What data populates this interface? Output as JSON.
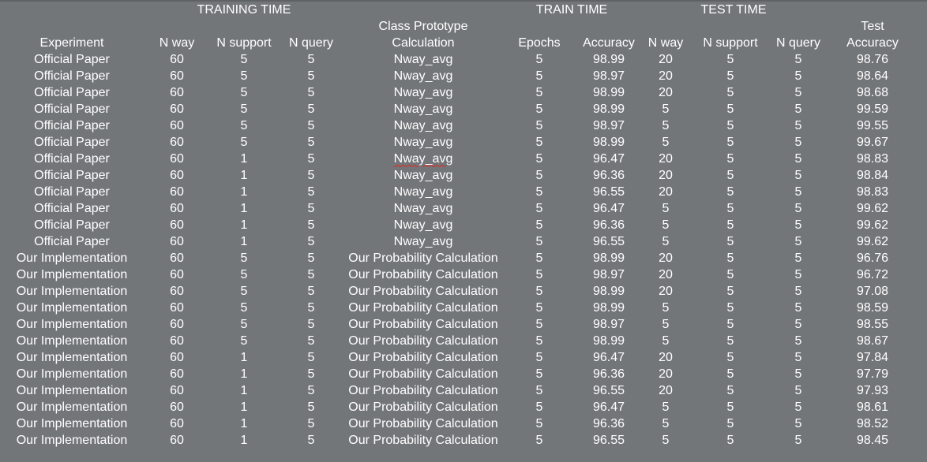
{
  "group_headers": {
    "training_time": "TRAINING TIME",
    "train_time": "TRAIN TIME",
    "test_time": "TEST TIME"
  },
  "headers": {
    "experiment": "Experiment",
    "n_way": "N way",
    "n_support": "N support",
    "n_query": "N query",
    "class_prototype_line1": "Class Prototype",
    "class_prototype_line2": "Calculation",
    "epochs": "Epochs",
    "accuracy": "Accuracy",
    "test_n_way": "N way",
    "test_n_support": "N support",
    "test_n_query": "N query",
    "test_accuracy_line1": "Test",
    "test_accuracy_line2": "Accuracy"
  },
  "rows": [
    [
      "Official Paper",
      "60",
      "5",
      "5",
      "Nway_avg",
      "5",
      "98.99",
      "20",
      "5",
      "5",
      "98.76"
    ],
    [
      "Official Paper",
      "60",
      "5",
      "5",
      "Nway_avg",
      "5",
      "98.97",
      "20",
      "5",
      "5",
      "98.64"
    ],
    [
      "Official Paper",
      "60",
      "5",
      "5",
      "Nway_avg",
      "5",
      "98.99",
      "20",
      "5",
      "5",
      "98.68"
    ],
    [
      "Official Paper",
      "60",
      "5",
      "5",
      "Nway_avg",
      "5",
      "98.99",
      "5",
      "5",
      "5",
      "99.59"
    ],
    [
      "Official Paper",
      "60",
      "5",
      "5",
      "Nway_avg",
      "5",
      "98.97",
      "5",
      "5",
      "5",
      "99.55"
    ],
    [
      "Official Paper",
      "60",
      "5",
      "5",
      "Nway_avg",
      "5",
      "98.99",
      "5",
      "5",
      "5",
      "99.67"
    ],
    [
      "Official Paper",
      "60",
      "1",
      "5",
      "Nway_avg",
      "5",
      "96.47",
      "20",
      "5",
      "5",
      "98.83"
    ],
    [
      "Official Paper",
      "60",
      "1",
      "5",
      "Nway_avg",
      "5",
      "96.36",
      "20",
      "5",
      "5",
      "98.84"
    ],
    [
      "Official Paper",
      "60",
      "1",
      "5",
      "Nway_avg",
      "5",
      "96.55",
      "20",
      "5",
      "5",
      "98.83"
    ],
    [
      "Official Paper",
      "60",
      "1",
      "5",
      "Nway_avg",
      "5",
      "96.47",
      "5",
      "5",
      "5",
      "99.62"
    ],
    [
      "Official Paper",
      "60",
      "1",
      "5",
      "Nway_avg",
      "5",
      "96.36",
      "5",
      "5",
      "5",
      "99.62"
    ],
    [
      "Official Paper",
      "60",
      "1",
      "5",
      "Nway_avg",
      "5",
      "96.55",
      "5",
      "5",
      "5",
      "99.62"
    ],
    [
      "Our Implementation",
      "60",
      "5",
      "5",
      "Our Probability Calculation",
      "5",
      "98.99",
      "20",
      "5",
      "5",
      "96.76"
    ],
    [
      "Our Implementation",
      "60",
      "5",
      "5",
      "Our Probability Calculation",
      "5",
      "98.97",
      "20",
      "5",
      "5",
      "96.72"
    ],
    [
      "Our Implementation",
      "60",
      "5",
      "5",
      "Our Probability Calculation",
      "5",
      "98.99",
      "20",
      "5",
      "5",
      "97.08"
    ],
    [
      "Our Implementation",
      "60",
      "5",
      "5",
      "Our Probability Calculation",
      "5",
      "98.99",
      "5",
      "5",
      "5",
      "98.59"
    ],
    [
      "Our Implementation",
      "60",
      "5",
      "5",
      "Our Probability Calculation",
      "5",
      "98.97",
      "5",
      "5",
      "5",
      "98.55"
    ],
    [
      "Our Implementation",
      "60",
      "5",
      "5",
      "Our Probability Calculation",
      "5",
      "98.99",
      "5",
      "5",
      "5",
      "98.67"
    ],
    [
      "Our Implementation",
      "60",
      "1",
      "5",
      "Our Probability Calculation",
      "5",
      "96.47",
      "20",
      "5",
      "5",
      "97.84"
    ],
    [
      "Our Implementation",
      "60",
      "1",
      "5",
      "Our Probability Calculation",
      "5",
      "96.36",
      "20",
      "5",
      "5",
      "97.79"
    ],
    [
      "Our Implementation",
      "60",
      "1",
      "5",
      "Our Probability Calculation",
      "5",
      "96.55",
      "20",
      "5",
      "5",
      "97.93"
    ],
    [
      "Our Implementation",
      "60",
      "1",
      "5",
      "Our Probability Calculation",
      "5",
      "96.47",
      "5",
      "5",
      "5",
      "98.61"
    ],
    [
      "Our Implementation",
      "60",
      "1",
      "5",
      "Our Probability Calculation",
      "5",
      "96.36",
      "5",
      "5",
      "5",
      "98.52"
    ],
    [
      "Our Implementation",
      "60",
      "1",
      "5",
      "Our Probability Calculation",
      "5",
      "96.55",
      "5",
      "5",
      "5",
      "98.45"
    ]
  ],
  "spellcheck_flag_row": 6,
  "colors": {
    "background": "#737679",
    "text": "#ffffff",
    "spellcheck_underline": "#e0261d"
  }
}
